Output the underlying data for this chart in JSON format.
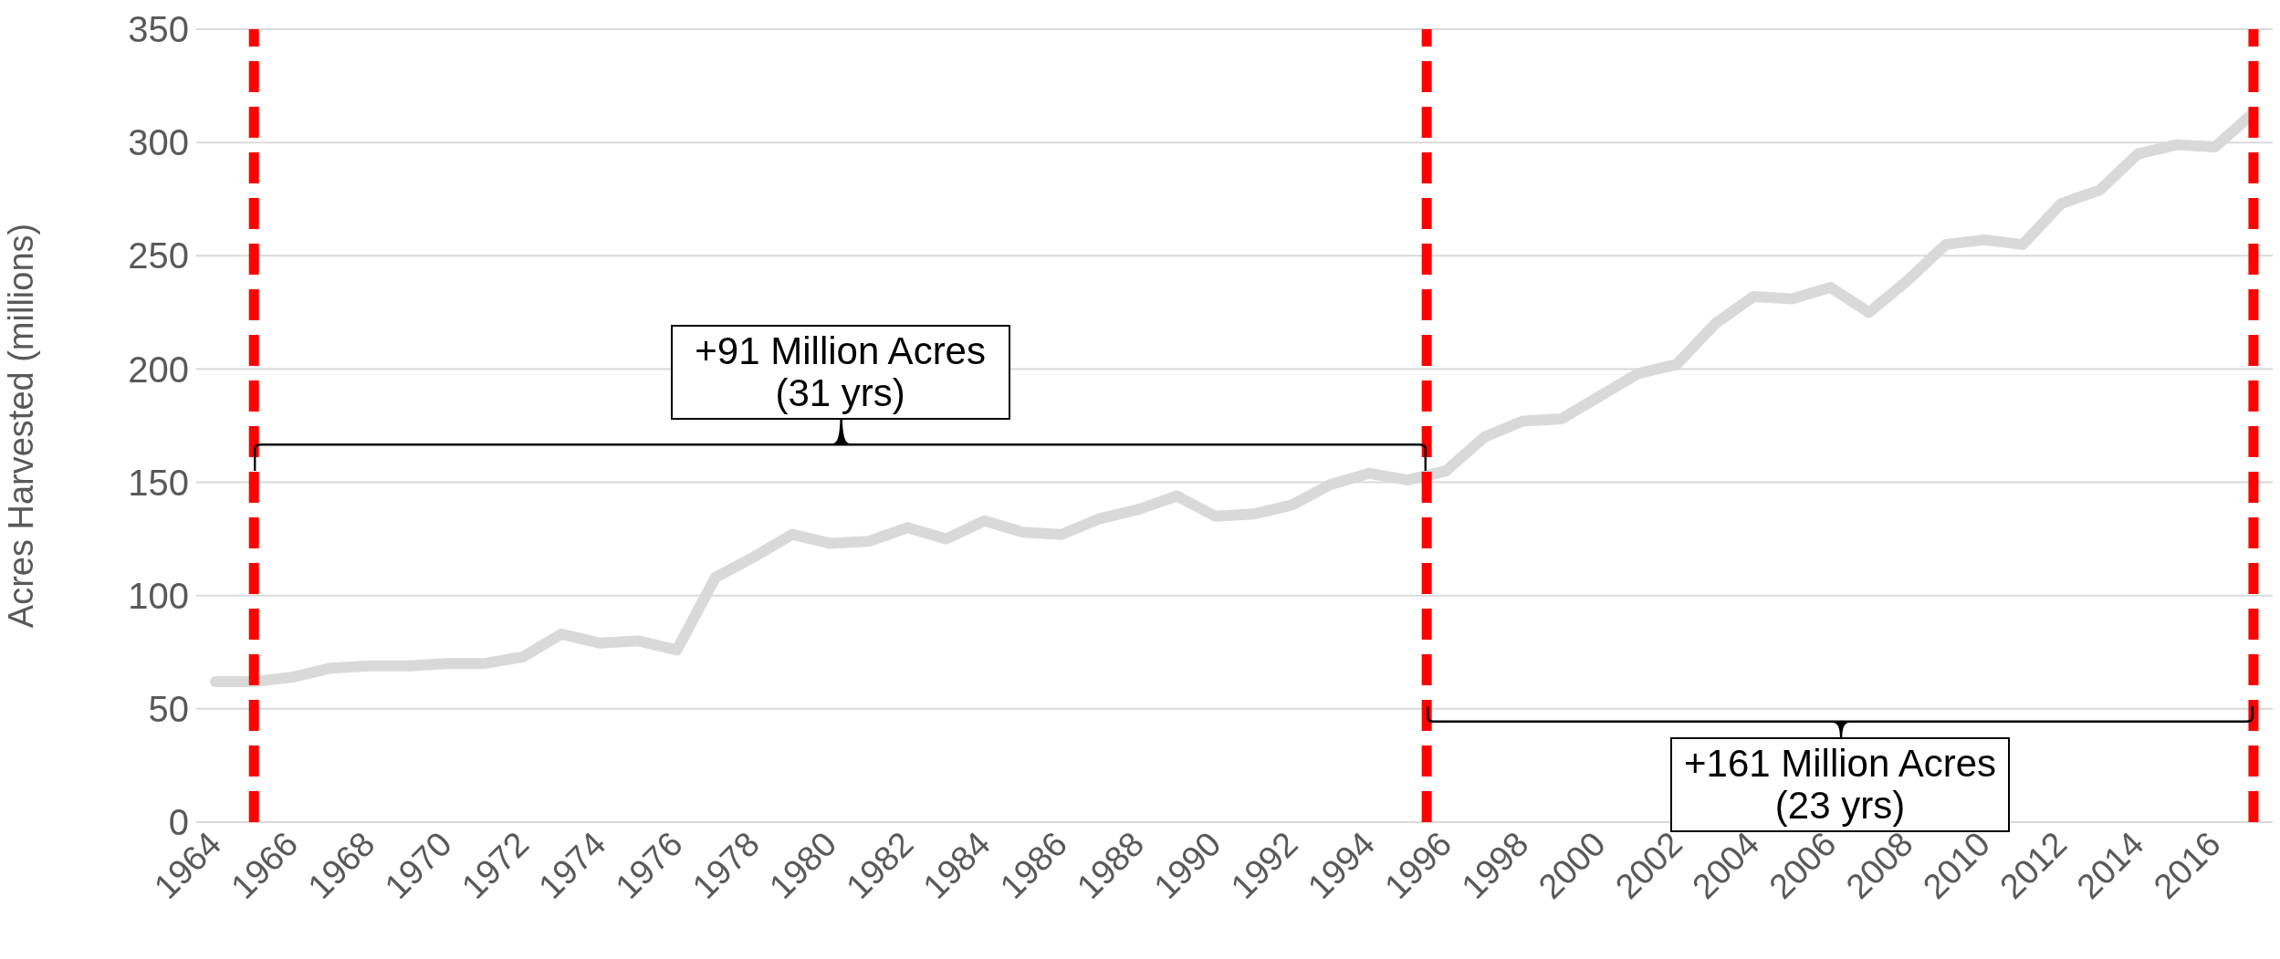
{
  "chart_data": {
    "type": "line",
    "ylabel": "Acres Harvested (millions)",
    "x": [
      1964,
      1965,
      1966,
      1967,
      1968,
      1969,
      1970,
      1971,
      1972,
      1973,
      1974,
      1975,
      1976,
      1977,
      1978,
      1979,
      1980,
      1981,
      1982,
      1983,
      1984,
      1985,
      1986,
      1987,
      1988,
      1989,
      1990,
      1991,
      1992,
      1993,
      1994,
      1995,
      1996,
      1997,
      1998,
      1999,
      2000,
      2001,
      2002,
      2003,
      2004,
      2005,
      2006,
      2007,
      2008,
      2009,
      2010,
      2011,
      2012,
      2013,
      2014,
      2015,
      2016,
      2017
    ],
    "series": [
      {
        "color": "#d9d9d9",
        "values": [
          62,
          62,
          64,
          68,
          69,
          69,
          70,
          70,
          73,
          83,
          79,
          80,
          76,
          108,
          117,
          127,
          123,
          124,
          130,
          125,
          133,
          128,
          127,
          134,
          138,
          144,
          135,
          136,
          140,
          149,
          154,
          151,
          155,
          170,
          177,
          178,
          188,
          198,
          202,
          220,
          232,
          231,
          236,
          225,
          239,
          255,
          257,
          255,
          273,
          279,
          295,
          299,
          298,
          313
        ]
      }
    ],
    "xlim": [
      1963.5,
      2017.5
    ],
    "xticks": [
      1964,
      1966,
      1968,
      1970,
      1972,
      1974,
      1976,
      1978,
      1980,
      1982,
      1984,
      1986,
      1988,
      1990,
      1992,
      1994,
      1996,
      1998,
      2000,
      2002,
      2004,
      2006,
      2008,
      2010,
      2012,
      2014,
      2016
    ],
    "ylim": [
      0,
      350
    ],
    "yticks": [
      0,
      50,
      100,
      150,
      200,
      250,
      300,
      350
    ],
    "grid": "y",
    "line_style": "solid",
    "ref_lines": [
      {
        "axis": "x",
        "value": 1965,
        "color": "#ff0000",
        "line_style": "dashed"
      },
      {
        "axis": "x",
        "value": 1995.5,
        "color": "#ff0000",
        "line_style": "dashed"
      },
      {
        "axis": "x",
        "value": 2017,
        "color": "#ff0000",
        "line_style": "dashed"
      }
    ],
    "annotations": [
      "+91 Million Acres (31 yrs)",
      "+161 Million Acres (23 yrs)"
    ]
  }
}
